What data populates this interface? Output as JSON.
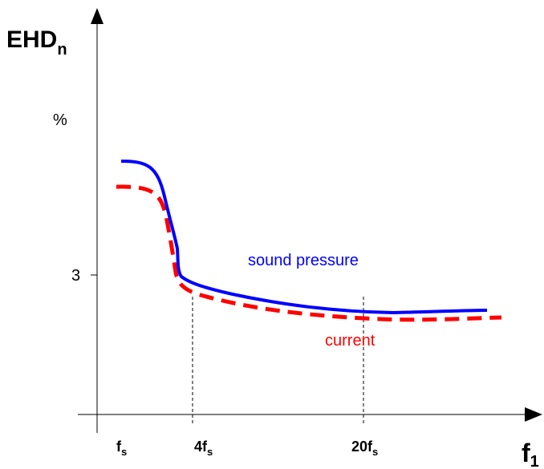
{
  "diagram": {
    "y_axis_label": "EHD",
    "y_axis_label_sub": "n",
    "y_unit": "%",
    "y_tick": "3",
    "x_axis_label": "f",
    "x_axis_label_sub": "1",
    "x_ticks": [
      {
        "main": "f",
        "sub": "s"
      },
      {
        "main": "4f",
        "sub": "s"
      },
      {
        "main": "20f",
        "sub": "s"
      }
    ],
    "series": [
      {
        "name": "sound pressure",
        "color": "#0000ff",
        "style": "solid"
      },
      {
        "name": "current",
        "color": "#ff0000",
        "style": "dashed"
      }
    ]
  }
}
